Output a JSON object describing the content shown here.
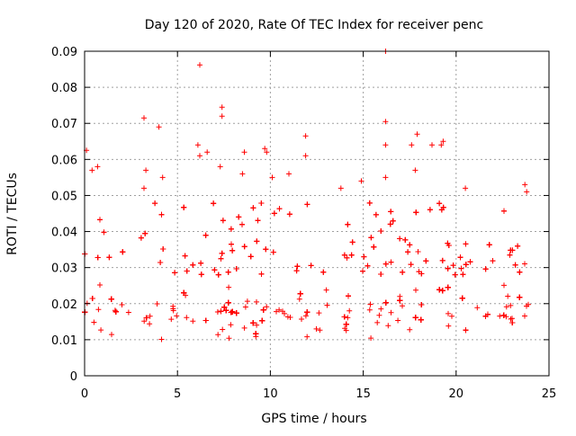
{
  "chart_data": {
    "type": "scatter",
    "title": "Day 120 of 2020, Rate Of TEC Index for receiver penc",
    "xlabel": "GPS time / hours",
    "ylabel": "ROTI / TECUs",
    "xlim": [
      0,
      25
    ],
    "ylim": [
      0,
      0.09
    ],
    "grid": true,
    "x_ticks": [
      0,
      5,
      10,
      15,
      20,
      25
    ],
    "x_tick_labels": [
      "0",
      "5",
      "10",
      "15",
      "20",
      "25"
    ],
    "y_ticks": [
      0,
      0.01,
      0.02,
      0.03,
      0.04,
      0.05,
      0.06,
      0.07,
      0.08,
      0.09
    ],
    "y_tick_labels": [
      "0",
      "0.01",
      "0.02",
      "0.03",
      "0.04",
      "0.05",
      "0.06",
      "0.07",
      "0.08",
      "0.09"
    ],
    "series": [
      {
        "name": "ROTI",
        "color": "#ff0000",
        "marker": "plus",
        "x_range": [
          0,
          23.9
        ],
        "typical_range": [
          0.005,
          0.03
        ],
        "gaps": [
          [
            13.1,
            13.5
          ]
        ],
        "outliers": [
          {
            "x": 0.1,
            "y": 0.0625
          },
          {
            "x": 0.4,
            "y": 0.057
          },
          {
            "x": 0.7,
            "y": 0.058
          },
          {
            "x": 3.2,
            "y": 0.0715
          },
          {
            "x": 3.3,
            "y": 0.057
          },
          {
            "x": 3.2,
            "y": 0.052
          },
          {
            "x": 4.0,
            "y": 0.069
          },
          {
            "x": 4.2,
            "y": 0.055
          },
          {
            "x": 6.2,
            "y": 0.0862
          },
          {
            "x": 6.1,
            "y": 0.064
          },
          {
            "x": 6.2,
            "y": 0.061
          },
          {
            "x": 6.6,
            "y": 0.062
          },
          {
            "x": 7.4,
            "y": 0.0745
          },
          {
            "x": 7.4,
            "y": 0.072
          },
          {
            "x": 7.3,
            "y": 0.058
          },
          {
            "x": 8.6,
            "y": 0.062
          },
          {
            "x": 8.5,
            "y": 0.056
          },
          {
            "x": 9.7,
            "y": 0.063
          },
          {
            "x": 9.8,
            "y": 0.062
          },
          {
            "x": 10.1,
            "y": 0.055
          },
          {
            "x": 11.0,
            "y": 0.056
          },
          {
            "x": 11.9,
            "y": 0.0665
          },
          {
            "x": 11.9,
            "y": 0.061
          },
          {
            "x": 13.8,
            "y": 0.052
          },
          {
            "x": 14.9,
            "y": 0.054
          },
          {
            "x": 16.2,
            "y": 0.09
          },
          {
            "x": 16.2,
            "y": 0.0705
          },
          {
            "x": 16.2,
            "y": 0.064
          },
          {
            "x": 16.2,
            "y": 0.055
          },
          {
            "x": 17.6,
            "y": 0.064
          },
          {
            "x": 17.9,
            "y": 0.067
          },
          {
            "x": 17.8,
            "y": 0.057
          },
          {
            "x": 18.7,
            "y": 0.064
          },
          {
            "x": 19.2,
            "y": 0.064
          },
          {
            "x": 19.3,
            "y": 0.065
          },
          {
            "x": 20.5,
            "y": 0.052
          },
          {
            "x": 23.7,
            "y": 0.053
          },
          {
            "x": 23.8,
            "y": 0.051
          }
        ]
      }
    ]
  }
}
